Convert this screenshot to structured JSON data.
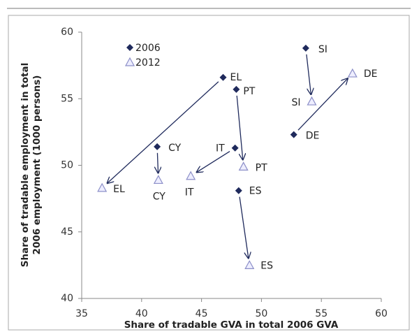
{
  "chart_data": {
    "type": "scatter",
    "xlabel": "Share of tradable GVA in total 2006 GVA",
    "ylabel": [
      "Share of tradable employment in total",
      "2006 employment (1000 persons)"
    ],
    "countries": [
      "EL",
      "PT",
      "IT",
      "CY",
      "ES",
      "SI",
      "DE"
    ],
    "series": [
      {
        "name": "2006",
        "color": "#1f2a5c",
        "marker": "diamond",
        "x": [
          46.8,
          47.9,
          47.8,
          41.3,
          48.1,
          53.7,
          52.7
        ],
        "values": [
          56.6,
          55.7,
          51.3,
          51.4,
          48.1,
          58.8,
          52.3
        ]
      },
      {
        "name": "2012",
        "color": "#8c8fc8",
        "marker": "triangle",
        "x": [
          36.7,
          48.5,
          44.1,
          41.4,
          49.0,
          54.2,
          57.6
        ],
        "values": [
          48.3,
          49.9,
          49.2,
          48.9,
          42.5,
          54.8,
          56.9
        ]
      }
    ],
    "arrows": true,
    "arrow_color": "#1f2a5c",
    "xlim": [
      35,
      60
    ],
    "xticks": [
      35,
      40,
      45,
      50,
      55,
      60
    ],
    "ylim": [
      40,
      60
    ],
    "yticks": [
      40,
      45,
      50,
      55,
      60
    ],
    "legend": "upper left"
  }
}
